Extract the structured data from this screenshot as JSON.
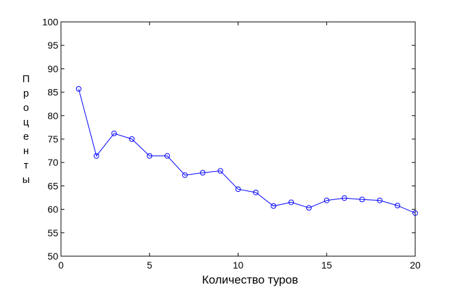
{
  "chart_data": {
    "type": "line",
    "title": "",
    "xlabel": "Количество туров",
    "ylabel": "Проценты",
    "xlim": [
      0,
      20
    ],
    "ylim": [
      50,
      100
    ],
    "xticks": [
      "0",
      "5",
      "10",
      "15",
      "20"
    ],
    "yticks": [
      "50",
      "55",
      "60",
      "65",
      "70",
      "75",
      "80",
      "85",
      "90",
      "95",
      "100"
    ],
    "grid": false,
    "line_color": "#0000ff",
    "marker": "circle",
    "series": [
      {
        "x": [
          1,
          2,
          3,
          4,
          5,
          6,
          7,
          8,
          9,
          10,
          11,
          12,
          13,
          14,
          15,
          16,
          17,
          18,
          19,
          20
        ],
        "values": [
          85.7,
          71.4,
          76.2,
          75.0,
          71.4,
          71.4,
          67.3,
          67.8,
          68.2,
          64.3,
          63.6,
          60.7,
          61.5,
          60.3,
          61.9,
          62.4,
          62.1,
          61.9,
          60.8,
          59.2
        ]
      }
    ]
  }
}
